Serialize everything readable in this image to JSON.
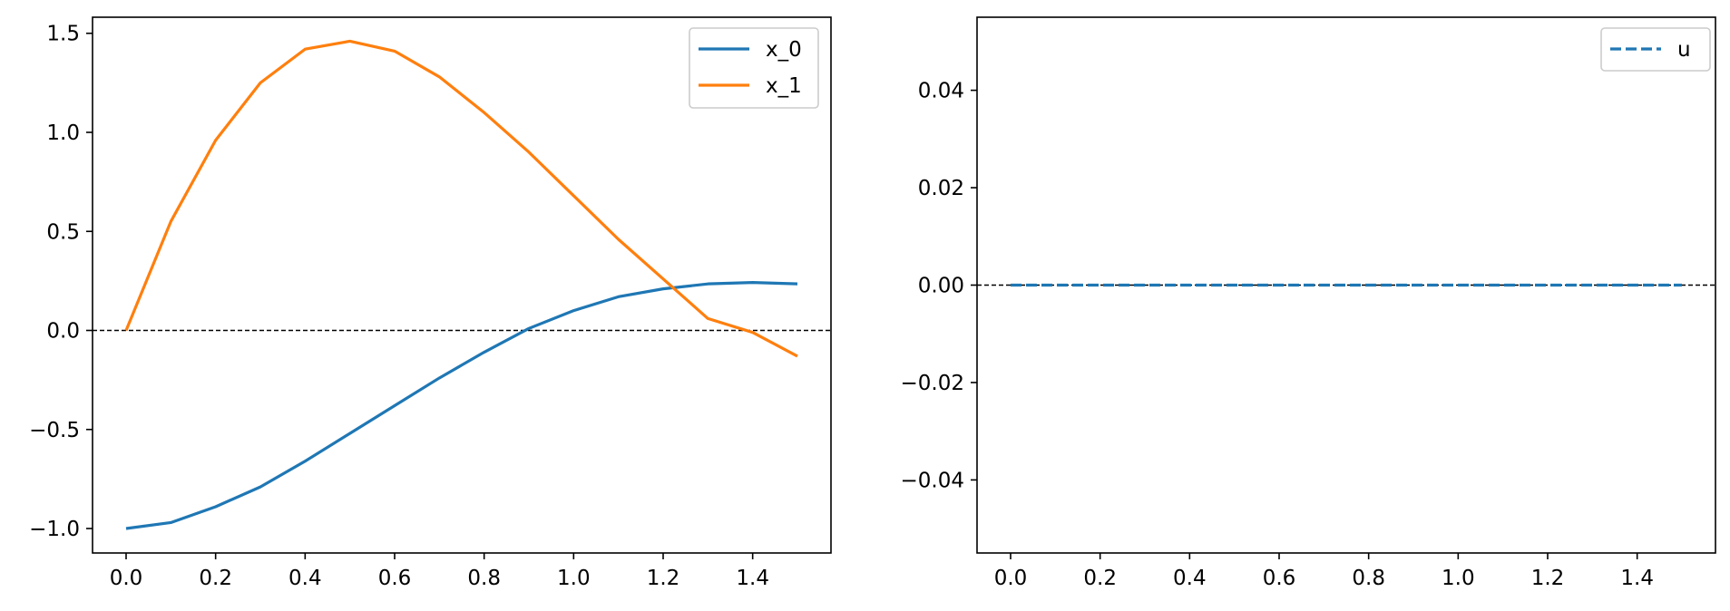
{
  "chart_data": [
    {
      "type": "line",
      "title": "",
      "xlabel": "",
      "ylabel": "",
      "xlim": [
        -0.075,
        1.575
      ],
      "ylim": [
        -1.1235,
        1.5812
      ],
      "xticks": [
        0.0,
        0.2,
        0.4,
        0.6,
        0.8,
        1.0,
        1.2,
        1.4
      ],
      "xtick_labels": [
        "0.0",
        "0.2",
        "0.4",
        "0.6",
        "0.8",
        "1.0",
        "1.2",
        "1.4"
      ],
      "yticks": [
        -1.0,
        -0.5,
        0.0,
        0.5,
        1.0,
        1.5
      ],
      "ytick_labels": [
        "−1.0",
        "−0.5",
        "0.0",
        "0.5",
        "1.0",
        "1.5"
      ],
      "grid": false,
      "legend_position": "upper right",
      "reference_line": {
        "y": 0.0,
        "style": "dashed",
        "color": "#000000"
      },
      "series": [
        {
          "name": "x_0",
          "color": "#1f77b4",
          "style": "solid",
          "x": [
            0.0,
            0.1,
            0.2,
            0.3,
            0.4,
            0.5,
            0.6,
            0.7,
            0.8,
            0.9,
            1.0,
            1.1,
            1.2,
            1.3,
            1.4,
            1.5
          ],
          "values": [
            -1.0,
            -0.97,
            -0.89,
            -0.79,
            -0.66,
            -0.52,
            -0.38,
            -0.24,
            -0.11,
            0.01,
            0.1,
            0.17,
            0.21,
            0.235,
            0.242,
            0.235
          ]
        },
        {
          "name": "x_1",
          "color": "#ff7f0e",
          "style": "solid",
          "x": [
            0.0,
            0.1,
            0.2,
            0.3,
            0.4,
            0.5,
            0.6,
            0.7,
            0.8,
            0.9,
            1.0,
            1.1,
            1.2,
            1.3,
            1.4,
            1.5
          ],
          "values": [
            0.0,
            0.55,
            0.96,
            1.25,
            1.42,
            1.46,
            1.41,
            1.28,
            1.1,
            0.9,
            0.68,
            0.46,
            0.26,
            0.06,
            -0.01,
            -0.13
          ]
        }
      ]
    },
    {
      "type": "line",
      "title": "",
      "xlabel": "",
      "ylabel": "",
      "xlim": [
        -0.075,
        1.575
      ],
      "ylim": [
        -0.055,
        0.055
      ],
      "xticks": [
        0.0,
        0.2,
        0.4,
        0.6,
        0.8,
        1.0,
        1.2,
        1.4
      ],
      "xtick_labels": [
        "0.0",
        "0.2",
        "0.4",
        "0.6",
        "0.8",
        "1.0",
        "1.2",
        "1.4"
      ],
      "yticks": [
        -0.04,
        -0.02,
        0.0,
        0.02,
        0.04
      ],
      "ytick_labels": [
        "−0.04",
        "−0.02",
        "0.00",
        "0.02",
        "0.04"
      ],
      "grid": false,
      "legend_position": "upper right",
      "reference_line": {
        "y": 0.0,
        "style": "dashed",
        "color": "#000000"
      },
      "series": [
        {
          "name": "u",
          "color": "#1f77b4",
          "style": "dashed",
          "x": [
            0.0,
            1.5
          ],
          "values": [
            0.0,
            0.0
          ]
        }
      ]
    }
  ]
}
